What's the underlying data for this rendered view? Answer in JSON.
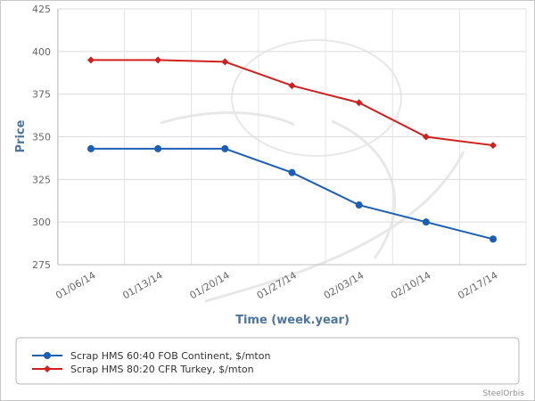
{
  "chart_data": {
    "type": "line",
    "categories": [
      "01/06/14",
      "01/13/14",
      "01/20/14",
      "01/27/14",
      "02/03/14",
      "02/10/14",
      "02/17/14"
    ],
    "series": [
      {
        "name": "Scrap HMS 60:40 FOB Continent, $/mton",
        "color": "#1a5fb4",
        "marker": "circle",
        "values": [
          343,
          343,
          343,
          329,
          310,
          300,
          290
        ]
      },
      {
        "name": "Scrap HMS 80:20 CFR Turkey, $/mton",
        "color": "#d0201e",
        "marker": "diamond",
        "values": [
          395,
          395,
          394,
          380,
          370,
          350,
          345
        ]
      }
    ],
    "xlabel": "Time (week.year)",
    "ylabel": "Price",
    "ylim": [
      275,
      425
    ],
    "yticks": [
      275,
      300,
      325,
      350,
      375,
      400,
      425
    ],
    "grid": true,
    "legend": "bottom"
  },
  "credit": "SteelOrbis"
}
